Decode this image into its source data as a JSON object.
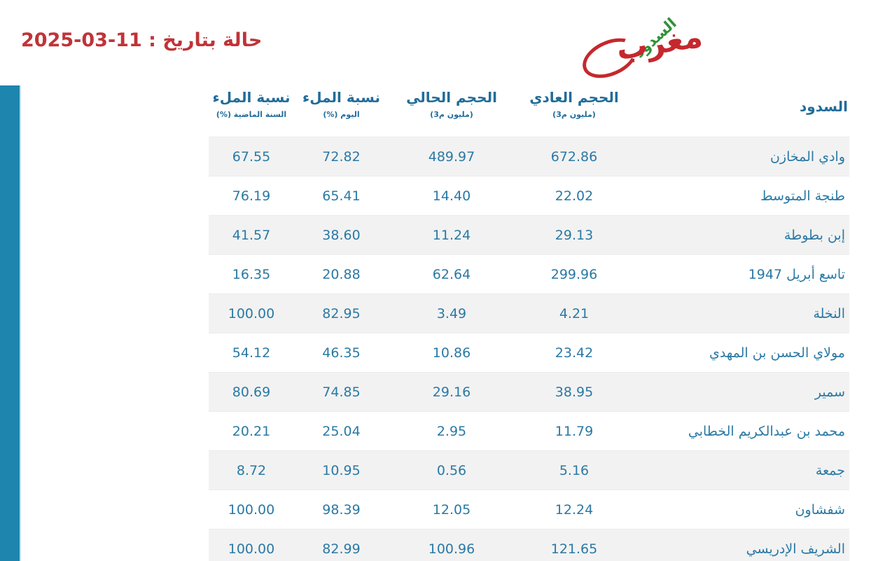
{
  "page": {
    "background": "#ffffff",
    "accent_bar_color": "#1d85ae"
  },
  "header": {
    "date_label": "حالة بتاريخ : 11-03-2025",
    "date_color": "#c03338",
    "logo": {
      "word_red": "مغرب",
      "word_green": "السدود",
      "red_color": "#c5282d",
      "green_color": "#2f9138"
    }
  },
  "table": {
    "header_text_color": "#216c99",
    "body_text_color": "#2a79a4",
    "alt_row_bg": "#f2f2f2",
    "columns": [
      {
        "label": "نسبة الملء",
        "sublabel": "السنة الماضية (%)"
      },
      {
        "label": "نسبة الملء",
        "sublabel": "اليوم (%)"
      },
      {
        "label": "الحجم الحالي",
        "sublabel": "(مليون م3)"
      },
      {
        "label": "الحجم العادي",
        "sublabel": "(مليون م3)"
      },
      {
        "label": "السدود",
        "sublabel": ""
      }
    ],
    "rows": [
      {
        "name": "وادي المخازن",
        "normal": "672.86",
        "current": "489.97",
        "today": "72.82",
        "last_year": "67.55"
      },
      {
        "name": "طنجة المتوسط",
        "normal": "22.02",
        "current": "14.40",
        "today": "65.41",
        "last_year": "76.19"
      },
      {
        "name": "إبن بطوطة",
        "normal": "29.13",
        "current": "11.24",
        "today": "38.60",
        "last_year": "41.57"
      },
      {
        "name": "تاسع أبريل 1947",
        "normal": "299.96",
        "current": "62.64",
        "today": "20.88",
        "last_year": "16.35"
      },
      {
        "name": "النخلة",
        "normal": "4.21",
        "current": "3.49",
        "today": "82.95",
        "last_year": "100.00"
      },
      {
        "name": "مولاي الحسن بن المهدي",
        "normal": "23.42",
        "current": "10.86",
        "today": "46.35",
        "last_year": "54.12"
      },
      {
        "name": "سمير",
        "normal": "38.95",
        "current": "29.16",
        "today": "74.85",
        "last_year": "80.69"
      },
      {
        "name": "محمد بن عبدالكريم الخطابي",
        "normal": "11.79",
        "current": "2.95",
        "today": "25.04",
        "last_year": "20.21"
      },
      {
        "name": "جمعة",
        "normal": "5.16",
        "current": "0.56",
        "today": "10.95",
        "last_year": "8.72"
      },
      {
        "name": "شفشاون",
        "normal": "12.24",
        "current": "12.05",
        "today": "98.39",
        "last_year": "100.00"
      },
      {
        "name": "الشريف الإدريسي",
        "normal": "121.65",
        "current": "100.96",
        "today": "82.99",
        "last_year": "100.00"
      }
    ]
  }
}
